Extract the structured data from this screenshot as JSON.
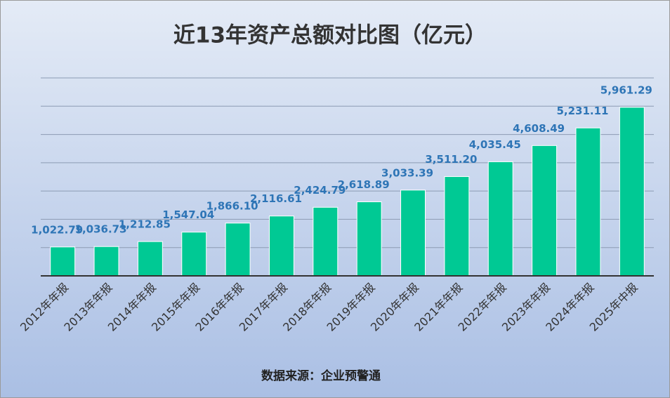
{
  "chart_data": {
    "type": "bar",
    "title": "近13年资产总额对比图（亿元）",
    "categories": [
      "2012年年报",
      "2013年年报",
      "2014年年报",
      "2015年年报",
      "2016年年报",
      "2017年年报",
      "2018年年报",
      "2019年年报",
      "2020年年报",
      "2021年年报",
      "2022年年报",
      "2023年年报",
      "2024年年报",
      "2025年中报"
    ],
    "values": [
      1022.79,
      1036.73,
      1212.85,
      1547.04,
      1866.1,
      2116.61,
      2424.79,
      2618.89,
      3033.39,
      3511.2,
      4035.45,
      4608.49,
      5231.11,
      5961.29
    ],
    "value_labels": [
      "1,022.79",
      "1,036.73",
      "1,212.85",
      "1,547.04",
      "1,866.10",
      "2,116.61",
      "2,424.79",
      "2,618.89",
      "3,033.39",
      "3,511.20",
      "4,035.45",
      "4,608.49",
      "5,231.11",
      "5,961.29"
    ],
    "color": "#00c994",
    "ylim": [
      0,
      7000
    ],
    "yticks": [
      0,
      1000,
      2000,
      3000,
      4000,
      5000,
      6000,
      7000
    ],
    "grid": true,
    "source": "数据来源：企业预警通"
  }
}
